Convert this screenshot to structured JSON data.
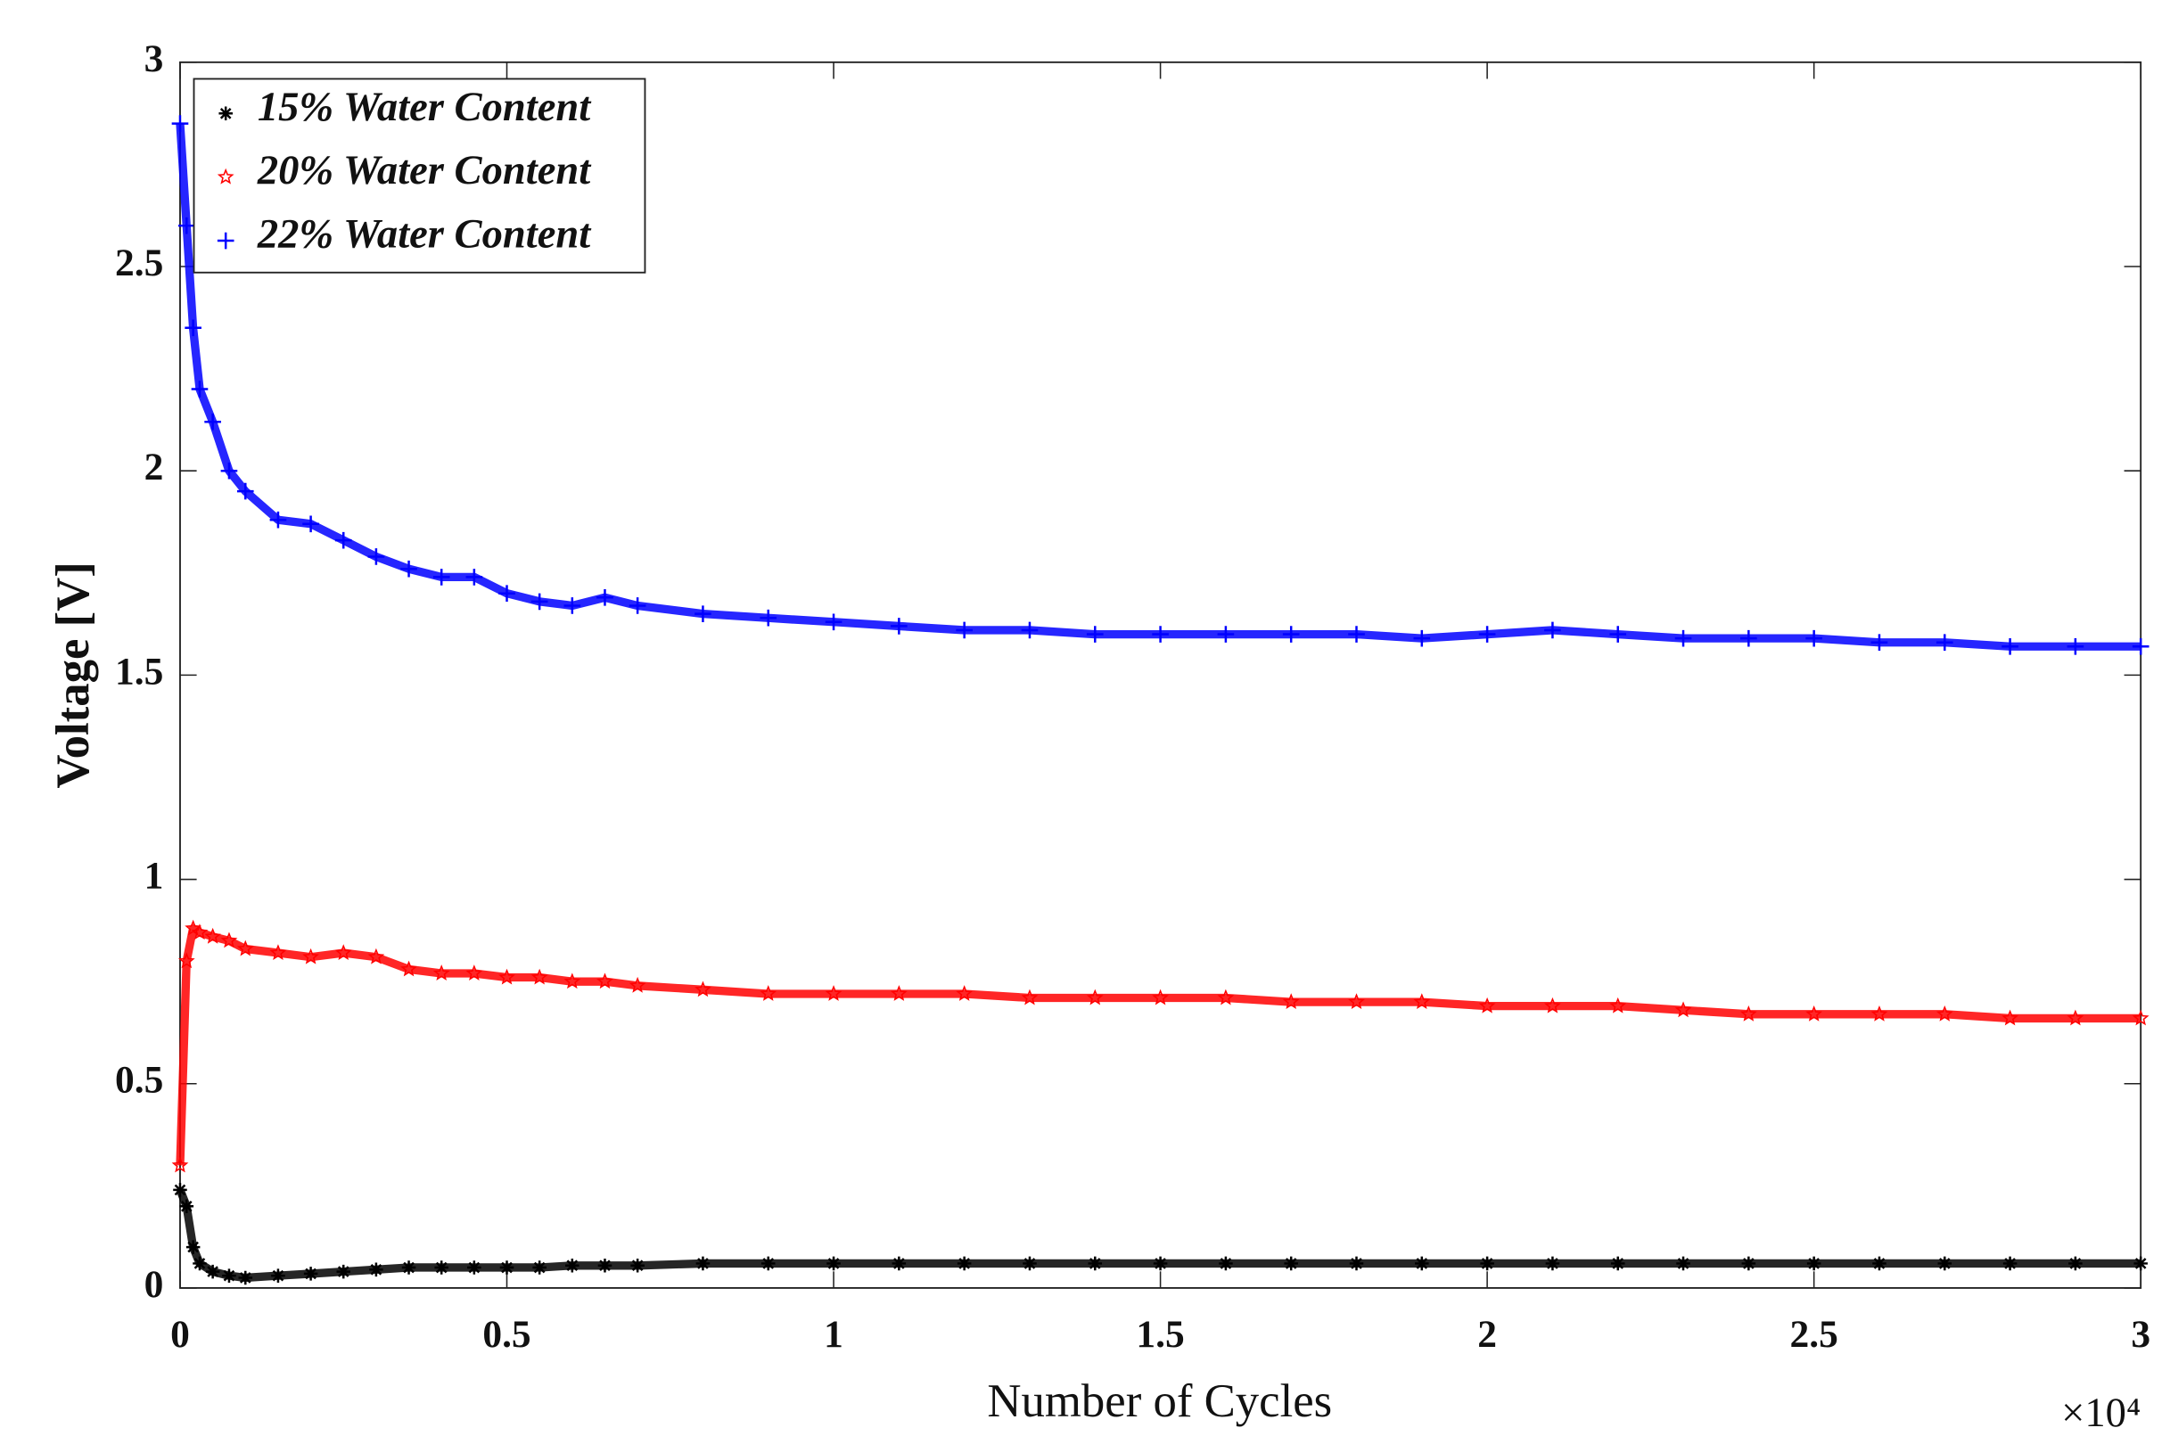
{
  "chart_data": {
    "type": "scatter",
    "xlabel": "Number of Cycles",
    "ylabel": "Voltage [V]",
    "x_scale_label": "×10⁴",
    "xlim": [
      0,
      30000
    ],
    "xticks": [
      0,
      {
        "value": 5000,
        "label": "0.5"
      },
      {
        "value": 10000,
        "label": "1"
      },
      {
        "value": 15000,
        "label": "1.5"
      },
      {
        "value": 20000,
        "label": "2"
      },
      {
        "value": 25000,
        "label": "2.5"
      },
      {
        "value": 30000,
        "label": "3"
      }
    ],
    "ylim": [
      0,
      3
    ],
    "yticks": [
      0,
      0.5,
      1,
      1.5,
      2,
      2.5,
      3
    ],
    "legend": "upper left",
    "x": [
      0,
      100,
      200,
      300,
      500,
      750,
      1000,
      1500,
      2000,
      2500,
      3000,
      3500,
      4000,
      4500,
      5000,
      5500,
      6000,
      6500,
      7000,
      8000,
      9000,
      10000,
      11000,
      12000,
      13000,
      14000,
      15000,
      16000,
      17000,
      18000,
      19000,
      20000,
      21000,
      22000,
      23000,
      24000,
      25000,
      26000,
      27000,
      28000,
      29000,
      30000
    ],
    "series": [
      {
        "name": "15% Water Content",
        "color": "#000000",
        "marker": "asterisk",
        "values": [
          0.24,
          0.2,
          0.1,
          0.06,
          0.04,
          0.03,
          0.025,
          0.03,
          0.035,
          0.04,
          0.045,
          0.05,
          0.05,
          0.05,
          0.05,
          0.05,
          0.055,
          0.055,
          0.055,
          0.06,
          0.06,
          0.06,
          0.06,
          0.06,
          0.06,
          0.06,
          0.06,
          0.06,
          0.06,
          0.06,
          0.06,
          0.06,
          0.06,
          0.06,
          0.06,
          0.06,
          0.06,
          0.06,
          0.06,
          0.06,
          0.06,
          0.06
        ]
      },
      {
        "name": "20% Water Content",
        "color": "#ff0000",
        "marker": "pentagram",
        "values": [
          0.3,
          0.8,
          0.88,
          0.87,
          0.86,
          0.85,
          0.83,
          0.82,
          0.81,
          0.82,
          0.81,
          0.78,
          0.77,
          0.77,
          0.76,
          0.76,
          0.75,
          0.75,
          0.74,
          0.73,
          0.72,
          0.72,
          0.72,
          0.72,
          0.71,
          0.71,
          0.71,
          0.71,
          0.7,
          0.7,
          0.7,
          0.69,
          0.69,
          0.69,
          0.68,
          0.67,
          0.67,
          0.67,
          0.67,
          0.66,
          0.66,
          0.66
        ]
      },
      {
        "name": "22% Water Content",
        "color": "#0000ff",
        "marker": "plus",
        "values": [
          2.85,
          2.6,
          2.35,
          2.2,
          2.12,
          2.0,
          1.95,
          1.88,
          1.87,
          1.83,
          1.79,
          1.76,
          1.74,
          1.74,
          1.7,
          1.68,
          1.67,
          1.69,
          1.67,
          1.65,
          1.64,
          1.63,
          1.62,
          1.61,
          1.61,
          1.6,
          1.6,
          1.6,
          1.6,
          1.6,
          1.59,
          1.6,
          1.61,
          1.6,
          1.59,
          1.59,
          1.59,
          1.58,
          1.58,
          1.57,
          1.57,
          1.57
        ]
      }
    ]
  }
}
